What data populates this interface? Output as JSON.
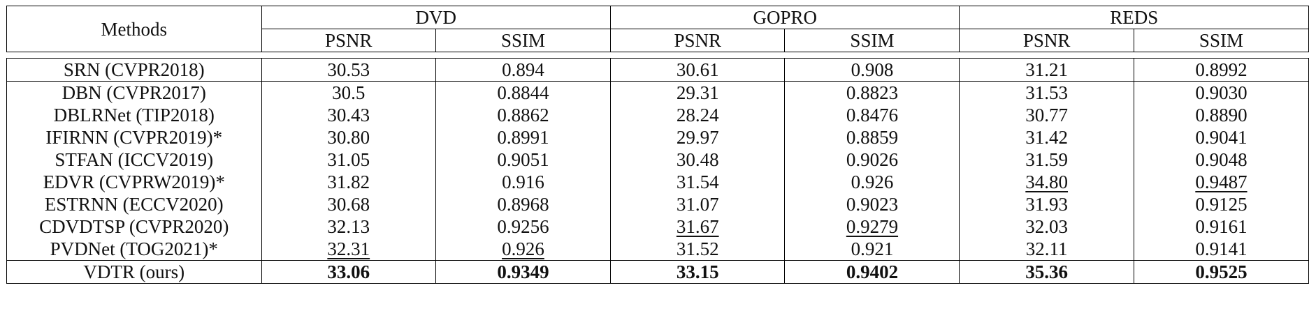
{
  "table": {
    "methods_header": "Methods",
    "groups": [
      "DVD",
      "GOPRO",
      "REDS"
    ],
    "metrics": [
      "PSNR",
      "SSIM",
      "PSNR",
      "SSIM",
      "PSNR",
      "SSIM"
    ],
    "rows": [
      {
        "method": "SRN (CVPR2018)",
        "values": [
          "30.53",
          "0.894",
          "30.61",
          "0.908",
          "31.21",
          "0.8992"
        ],
        "underline": [],
        "bold": []
      },
      {
        "method": "DBN (CVPR2017)",
        "values": [
          "30.5",
          "0.8844",
          "29.31",
          "0.8823",
          "31.53",
          "0.9030"
        ],
        "underline": [],
        "bold": []
      },
      {
        "method": "DBLRNet (TIP2018)",
        "values": [
          "30.43",
          "0.8862",
          "28.24",
          "0.8476",
          "30.77",
          "0.8890"
        ],
        "underline": [],
        "bold": []
      },
      {
        "method": "IFIRNN (CVPR2019)*",
        "values": [
          "30.80",
          "0.8991",
          "29.97",
          "0.8859",
          "31.42",
          "0.9041"
        ],
        "underline": [],
        "bold": []
      },
      {
        "method": "STFAN (ICCV2019)",
        "values": [
          "31.05",
          "0.9051",
          "30.48",
          "0.9026",
          "31.59",
          "0.9048"
        ],
        "underline": [],
        "bold": []
      },
      {
        "method": "EDVR (CVPRW2019)*",
        "values": [
          "31.82",
          "0.916",
          "31.54",
          "0.926",
          "34.80",
          "0.9487"
        ],
        "underline": [
          4,
          5
        ],
        "bold": []
      },
      {
        "method": "ESTRNN (ECCV2020)",
        "values": [
          "30.68",
          "0.8968",
          "31.07",
          "0.9023",
          "31.93",
          "0.9125"
        ],
        "underline": [],
        "bold": []
      },
      {
        "method": "CDVDTSP (CVPR2020)",
        "values": [
          "32.13",
          "0.9256",
          "31.67",
          "0.9279",
          "32.03",
          "0.9161"
        ],
        "underline": [
          2,
          3
        ],
        "bold": []
      },
      {
        "method": "PVDNet (TOG2021)*",
        "values": [
          "32.31",
          "0.926",
          "31.52",
          "0.921",
          "32.11",
          "0.9141"
        ],
        "underline": [
          0,
          1
        ],
        "bold": []
      },
      {
        "method": "VDTR (ours)",
        "values": [
          "33.06",
          "0.9349",
          "33.15",
          "0.9402",
          "35.36",
          "0.9525"
        ],
        "underline": [],
        "bold": [
          0,
          1,
          2,
          3,
          4,
          5
        ]
      }
    ]
  }
}
